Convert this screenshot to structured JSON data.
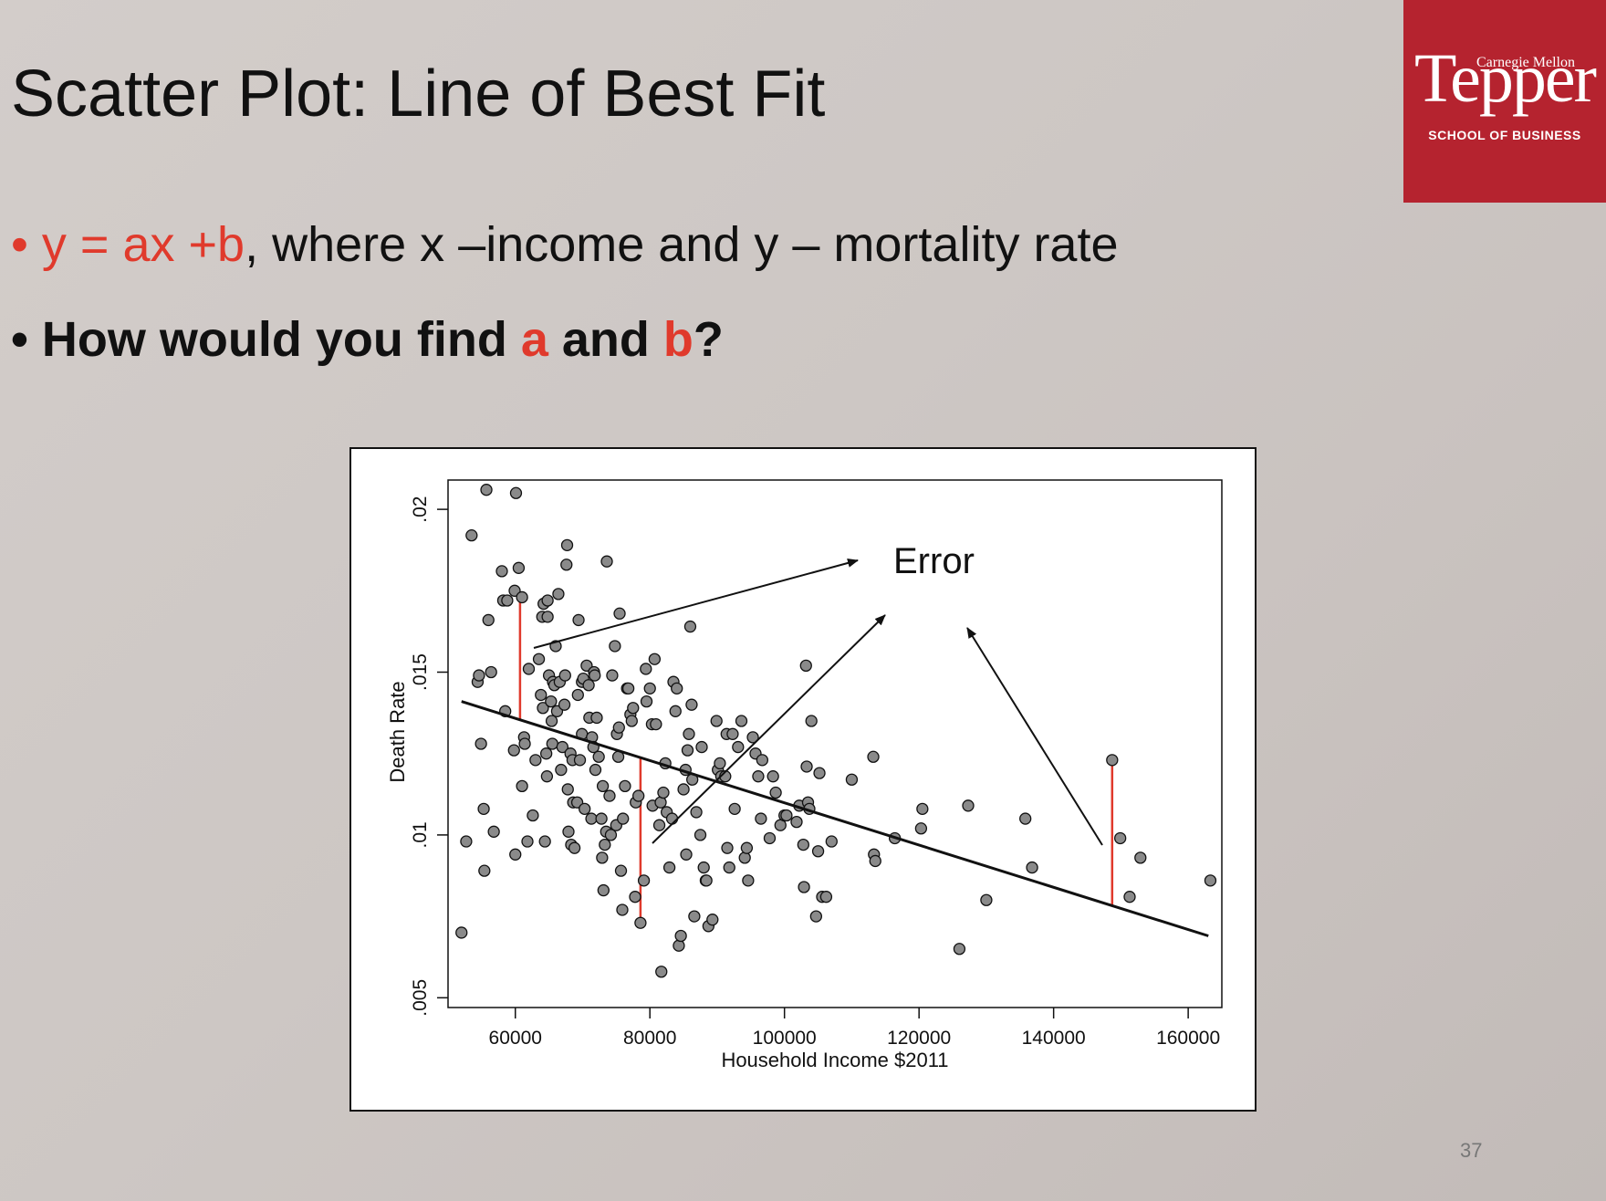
{
  "slide": {
    "title": "Scatter Plot: Line of Best Fit",
    "page_number": "37",
    "logo": {
      "top": "Carnegie Mellon",
      "name": "Tepper",
      "sub": "SCHOOL OF BUSINESS"
    },
    "bullet1": {
      "eq": "y = ax +b",
      "rest": ", where  x –income and y – mortality rate"
    },
    "bullet2": {
      "pre": "How would you find ",
      "a": "a",
      "mid": " and ",
      "b": "b",
      "end": "?"
    }
  },
  "chart_data": {
    "type": "scatter",
    "xlabel": "Household Income $2011",
    "ylabel": "Death Rate",
    "xlim": [
      50000,
      165000
    ],
    "ylim": [
      0.0047,
      0.0209
    ],
    "xticks": [
      60000,
      80000,
      100000,
      120000,
      140000,
      160000
    ],
    "yticks": [
      0.005,
      0.01,
      0.015,
      0.02
    ],
    "xtick_labels": [
      "60000",
      "80000",
      "100000",
      "120000",
      "140000",
      "160000"
    ],
    "ytick_labels": [
      ".005",
      ".01",
      ".015",
      ".02"
    ],
    "annotation": "Error",
    "fit_line": {
      "x": [
        52000,
        163000
      ],
      "y": [
        0.0141,
        0.0069
      ]
    },
    "residuals": [
      {
        "x": 60700,
        "y_point": 0.0173,
        "y_fit": 0.01353
      },
      {
        "x": 78600,
        "y_point": 0.0073,
        "y_fit": 0.01237
      },
      {
        "x": 148700,
        "y_point": 0.0123,
        "y_fit": 0.00782
      }
    ],
    "series": [
      {
        "points": [
          [
            52000,
            0.007
          ],
          [
            52700,
            0.0098
          ],
          [
            53500,
            0.0192
          ],
          [
            54400,
            0.0147
          ],
          [
            54600,
            0.0149
          ],
          [
            54900,
            0.0128
          ],
          [
            55300,
            0.0108
          ],
          [
            55400,
            0.0089
          ],
          [
            55700,
            0.0206
          ],
          [
            56000,
            0.0166
          ],
          [
            56400,
            0.015
          ],
          [
            56800,
            0.0101
          ],
          [
            58000,
            0.0181
          ],
          [
            58200,
            0.0172
          ],
          [
            58500,
            0.0138
          ],
          [
            58800,
            0.0172
          ],
          [
            59800,
            0.0126
          ],
          [
            59900,
            0.0175
          ],
          [
            60000,
            0.0094
          ],
          [
            60100,
            0.0205
          ],
          [
            60500,
            0.0182
          ],
          [
            61000,
            0.0173
          ],
          [
            61000,
            0.0115
          ],
          [
            61300,
            0.013
          ],
          [
            61400,
            0.0128
          ],
          [
            61800,
            0.0098
          ],
          [
            62000,
            0.0151
          ],
          [
            62600,
            0.0106
          ],
          [
            63000,
            0.0123
          ],
          [
            63500,
            0.0154
          ],
          [
            63800,
            0.0143
          ],
          [
            64000,
            0.0167
          ],
          [
            64100,
            0.0139
          ],
          [
            64200,
            0.0171
          ],
          [
            64400,
            0.0098
          ],
          [
            64600,
            0.0125
          ],
          [
            64700,
            0.0118
          ],
          [
            64800,
            0.0172
          ],
          [
            64800,
            0.0167
          ],
          [
            65000,
            0.0149
          ],
          [
            65300,
            0.0141
          ],
          [
            65400,
            0.0135
          ],
          [
            65500,
            0.0128
          ],
          [
            65600,
            0.0147
          ],
          [
            65800,
            0.0146
          ],
          [
            66000,
            0.0158
          ],
          [
            66200,
            0.0138
          ],
          [
            66400,
            0.0174
          ],
          [
            66600,
            0.0147
          ],
          [
            66800,
            0.012
          ],
          [
            67000,
            0.0127
          ],
          [
            67300,
            0.014
          ],
          [
            67400,
            0.0149
          ],
          [
            67600,
            0.0183
          ],
          [
            67700,
            0.0189
          ],
          [
            67800,
            0.0114
          ],
          [
            67900,
            0.0101
          ],
          [
            68200,
            0.0125
          ],
          [
            68300,
            0.0097
          ],
          [
            68500,
            0.0123
          ],
          [
            68600,
            0.011
          ],
          [
            68800,
            0.0096
          ],
          [
            69200,
            0.011
          ],
          [
            69300,
            0.0143
          ],
          [
            69400,
            0.0166
          ],
          [
            69600,
            0.0123
          ],
          [
            69900,
            0.0131
          ],
          [
            69900,
            0.0147
          ],
          [
            70100,
            0.0148
          ],
          [
            70300,
            0.0108
          ],
          [
            70600,
            0.0152
          ],
          [
            70900,
            0.0146
          ],
          [
            71000,
            0.0136
          ],
          [
            71300,
            0.0105
          ],
          [
            71400,
            0.013
          ],
          [
            71600,
            0.0127
          ],
          [
            71700,
            0.015
          ],
          [
            71800,
            0.0149
          ],
          [
            71900,
            0.012
          ],
          [
            72100,
            0.0136
          ],
          [
            72400,
            0.0124
          ],
          [
            72800,
            0.0105
          ],
          [
            72900,
            0.0093
          ],
          [
            73000,
            0.0115
          ],
          [
            73100,
            0.0083
          ],
          [
            73300,
            0.0097
          ],
          [
            73500,
            0.0101
          ],
          [
            73600,
            0.0184
          ],
          [
            74000,
            0.0112
          ],
          [
            74200,
            0.01
          ],
          [
            74400,
            0.0149
          ],
          [
            74800,
            0.0158
          ],
          [
            75000,
            0.0103
          ],
          [
            75100,
            0.0131
          ],
          [
            75300,
            0.0124
          ],
          [
            75400,
            0.0133
          ],
          [
            75500,
            0.0168
          ],
          [
            75700,
            0.0089
          ],
          [
            75900,
            0.0077
          ],
          [
            76000,
            0.0105
          ],
          [
            76300,
            0.0115
          ],
          [
            76600,
            0.0145
          ],
          [
            76800,
            0.0145
          ],
          [
            77100,
            0.0137
          ],
          [
            77300,
            0.0135
          ],
          [
            77500,
            0.0139
          ],
          [
            77800,
            0.0081
          ],
          [
            77900,
            0.011
          ],
          [
            78300,
            0.0112
          ],
          [
            78600,
            0.0073
          ],
          [
            79100,
            0.0086
          ],
          [
            79400,
            0.0151
          ],
          [
            79500,
            0.0141
          ],
          [
            80000,
            0.0145
          ],
          [
            80300,
            0.0134
          ],
          [
            80400,
            0.0109
          ],
          [
            80700,
            0.0154
          ],
          [
            80900,
            0.0134
          ],
          [
            81400,
            0.0103
          ],
          [
            81600,
            0.011
          ],
          [
            81700,
            0.0058
          ],
          [
            82000,
            0.0113
          ],
          [
            82300,
            0.0122
          ],
          [
            82500,
            0.0107
          ],
          [
            82900,
            0.009
          ],
          [
            83300,
            0.0105
          ],
          [
            83500,
            0.0147
          ],
          [
            83800,
            0.0138
          ],
          [
            84000,
            0.0145
          ],
          [
            84300,
            0.0066
          ],
          [
            84600,
            0.0069
          ],
          [
            85000,
            0.0114
          ],
          [
            85300,
            0.012
          ],
          [
            85400,
            0.0094
          ],
          [
            85600,
            0.0126
          ],
          [
            85800,
            0.0131
          ],
          [
            86000,
            0.0164
          ],
          [
            86200,
            0.014
          ],
          [
            86300,
            0.0117
          ],
          [
            86600,
            0.0075
          ],
          [
            86900,
            0.0107
          ],
          [
            87500,
            0.01
          ],
          [
            87700,
            0.0127
          ],
          [
            88000,
            0.009
          ],
          [
            88300,
            0.0086
          ],
          [
            88400,
            0.0086
          ],
          [
            88700,
            0.0072
          ],
          [
            89300,
            0.0074
          ],
          [
            89900,
            0.0135
          ],
          [
            90100,
            0.012
          ],
          [
            90400,
            0.0122
          ],
          [
            90600,
            0.0118
          ],
          [
            91200,
            0.0118
          ],
          [
            91400,
            0.0131
          ],
          [
            91500,
            0.0096
          ],
          [
            91800,
            0.009
          ],
          [
            92300,
            0.0131
          ],
          [
            92600,
            0.0108
          ],
          [
            93100,
            0.0127
          ],
          [
            93600,
            0.0135
          ],
          [
            94100,
            0.0093
          ],
          [
            94400,
            0.0096
          ],
          [
            94600,
            0.0086
          ],
          [
            95300,
            0.013
          ],
          [
            95700,
            0.0125
          ],
          [
            96100,
            0.0118
          ],
          [
            96500,
            0.0105
          ],
          [
            96700,
            0.0123
          ],
          [
            97800,
            0.0099
          ],
          [
            98300,
            0.0118
          ],
          [
            98700,
            0.0113
          ],
          [
            99400,
            0.0103
          ],
          [
            100000,
            0.0106
          ],
          [
            100300,
            0.0106
          ],
          [
            101800,
            0.0104
          ],
          [
            102200,
            0.0109
          ],
          [
            102800,
            0.0097
          ],
          [
            102900,
            0.0084
          ],
          [
            103200,
            0.0152
          ],
          [
            103300,
            0.0121
          ],
          [
            103500,
            0.011
          ],
          [
            103700,
            0.0108
          ],
          [
            104000,
            0.0135
          ],
          [
            104700,
            0.0075
          ],
          [
            105000,
            0.0095
          ],
          [
            105200,
            0.0119
          ],
          [
            105600,
            0.0081
          ],
          [
            106200,
            0.0081
          ],
          [
            107000,
            0.0098
          ],
          [
            110000,
            0.0117
          ],
          [
            113200,
            0.0124
          ],
          [
            113300,
            0.0094
          ],
          [
            113500,
            0.0092
          ],
          [
            116400,
            0.0099
          ],
          [
            120300,
            0.0102
          ],
          [
            120500,
            0.0108
          ],
          [
            126000,
            0.0065
          ],
          [
            127300,
            0.0109
          ],
          [
            130000,
            0.008
          ],
          [
            135800,
            0.0105
          ],
          [
            136800,
            0.009
          ],
          [
            148700,
            0.0123
          ],
          [
            149900,
            0.0099
          ],
          [
            151300,
            0.0081
          ],
          [
            152900,
            0.0093
          ],
          [
            163300,
            0.0086
          ]
        ]
      }
    ]
  }
}
